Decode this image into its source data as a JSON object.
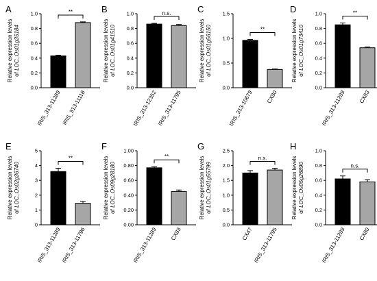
{
  "chart_data": [
    {
      "panel": "A",
      "type": "bar",
      "ylabel_line1": "Relative expression levels",
      "ylabel_line2": "of ",
      "ylabel_gene": "LOC_Os01g35184",
      "categories": [
        "IRIS_313-11289",
        "IRIS_313-11118"
      ],
      "values": [
        0.43,
        0.88
      ],
      "errors": [
        0.01,
        0.01
      ],
      "bar_colors": [
        "#000000",
        "#a6a6a6"
      ],
      "ylim": [
        0,
        1.0
      ],
      "yticks": [
        "0.0",
        "0.2",
        "0.4",
        "0.6",
        "0.8",
        "1.0"
      ],
      "significance": "**"
    },
    {
      "panel": "B",
      "type": "bar",
      "ylabel_line1": "Relative expression levels",
      "ylabel_line2": "of ",
      "ylabel_gene": "LOC_Os01g41510",
      "categories": [
        "IRIS_313-12352",
        "IRIS_313-11795"
      ],
      "values": [
        0.86,
        0.84
      ],
      "errors": [
        0.01,
        0.015
      ],
      "bar_colors": [
        "#000000",
        "#a6a6a6"
      ],
      "ylim": [
        0,
        1.0
      ],
      "yticks": [
        "0.0",
        "0.2",
        "0.4",
        "0.6",
        "0.8",
        "1.0"
      ],
      "significance": "n.s."
    },
    {
      "panel": "C",
      "type": "bar",
      "ylabel_line1": "Relative expression levels",
      "ylabel_line2": "of ",
      "ylabel_gene": "LOC_Os01g56150",
      "categories": [
        "IRIS_313-10679",
        "CX80"
      ],
      "values": [
        0.96,
        0.37
      ],
      "errors": [
        0.02,
        0.01
      ],
      "bar_colors": [
        "#000000",
        "#a6a6a6"
      ],
      "ylim": [
        0,
        1.5
      ],
      "yticks": [
        "0.0",
        "0.5",
        "1.0",
        "1.5"
      ],
      "significance": "**"
    },
    {
      "panel": "D",
      "type": "bar",
      "ylabel_line1": "Relative expression levels",
      "ylabel_line2": "of ",
      "ylabel_gene": "LOC_Os01g73410",
      "categories": [
        "IRIS_313-11289",
        "CX83"
      ],
      "values": [
        0.85,
        0.54
      ],
      "errors": [
        0.025,
        0.01
      ],
      "bar_colors": [
        "#000000",
        "#a6a6a6"
      ],
      "ylim": [
        0,
        1.0
      ],
      "yticks": [
        "0.0",
        "0.2",
        "0.4",
        "0.6",
        "0.8",
        "1.0"
      ],
      "significance": "**"
    },
    {
      "panel": "E",
      "type": "bar",
      "ylabel_line1": "Relative expression levels",
      "ylabel_line2": "of ",
      "ylabel_gene": "LOC_Os02g36740",
      "categories": [
        "IRIS_313-11289",
        "IRIS_313-11796"
      ],
      "values": [
        3.6,
        1.45
      ],
      "errors": [
        0.22,
        0.13
      ],
      "bar_colors": [
        "#000000",
        "#a6a6a6"
      ],
      "ylim": [
        0,
        5
      ],
      "yticks": [
        "0",
        "1",
        "2",
        "3",
        "4",
        "5"
      ],
      "significance": "**"
    },
    {
      "panel": "F",
      "type": "bar",
      "ylabel_line1": "Relative expression levels",
      "ylabel_line2": "of ",
      "ylabel_gene": "LOC_Os09g28180",
      "categories": [
        "IRIS_313-11289",
        "CX83"
      ],
      "values": [
        0.77,
        0.45
      ],
      "errors": [
        0.015,
        0.02
      ],
      "bar_colors": [
        "#000000",
        "#a6a6a6"
      ],
      "ylim": [
        0,
        1.0
      ],
      "yticks": [
        "0.00",
        "0.20",
        "0.40",
        "0.60",
        "0.80",
        "1.00"
      ],
      "significance": "**"
    },
    {
      "panel": "G",
      "type": "bar",
      "ylabel_line1": "Relative expression levels",
      "ylabel_line2": "of ",
      "ylabel_gene": "LOC_Os01g55799",
      "categories": [
        "CX47",
        "IRIS_313-11795"
      ],
      "values": [
        1.75,
        1.85
      ],
      "errors": [
        0.08,
        0.06
      ],
      "bar_colors": [
        "#000000",
        "#a6a6a6"
      ],
      "ylim": [
        0,
        2.5
      ],
      "yticks": [
        "0.0",
        "0.5",
        "1.0",
        "1.5",
        "2.0",
        "2.5"
      ],
      "significance": "n.s."
    },
    {
      "panel": "H",
      "type": "bar",
      "ylabel_line1": "Relative expression levels",
      "ylabel_line2": "of ",
      "ylabel_gene": "LOC_Os05g26890",
      "categories": [
        "IRIS_313-11289",
        "CX80"
      ],
      "values": [
        0.62,
        0.58
      ],
      "errors": [
        0.04,
        0.03
      ],
      "bar_colors": [
        "#000000",
        "#a6a6a6"
      ],
      "ylim": [
        0,
        1.0
      ],
      "yticks": [
        "0.0",
        "0.2",
        "0.4",
        "0.6",
        "0.8",
        "1.0"
      ],
      "significance": "n.s."
    }
  ]
}
